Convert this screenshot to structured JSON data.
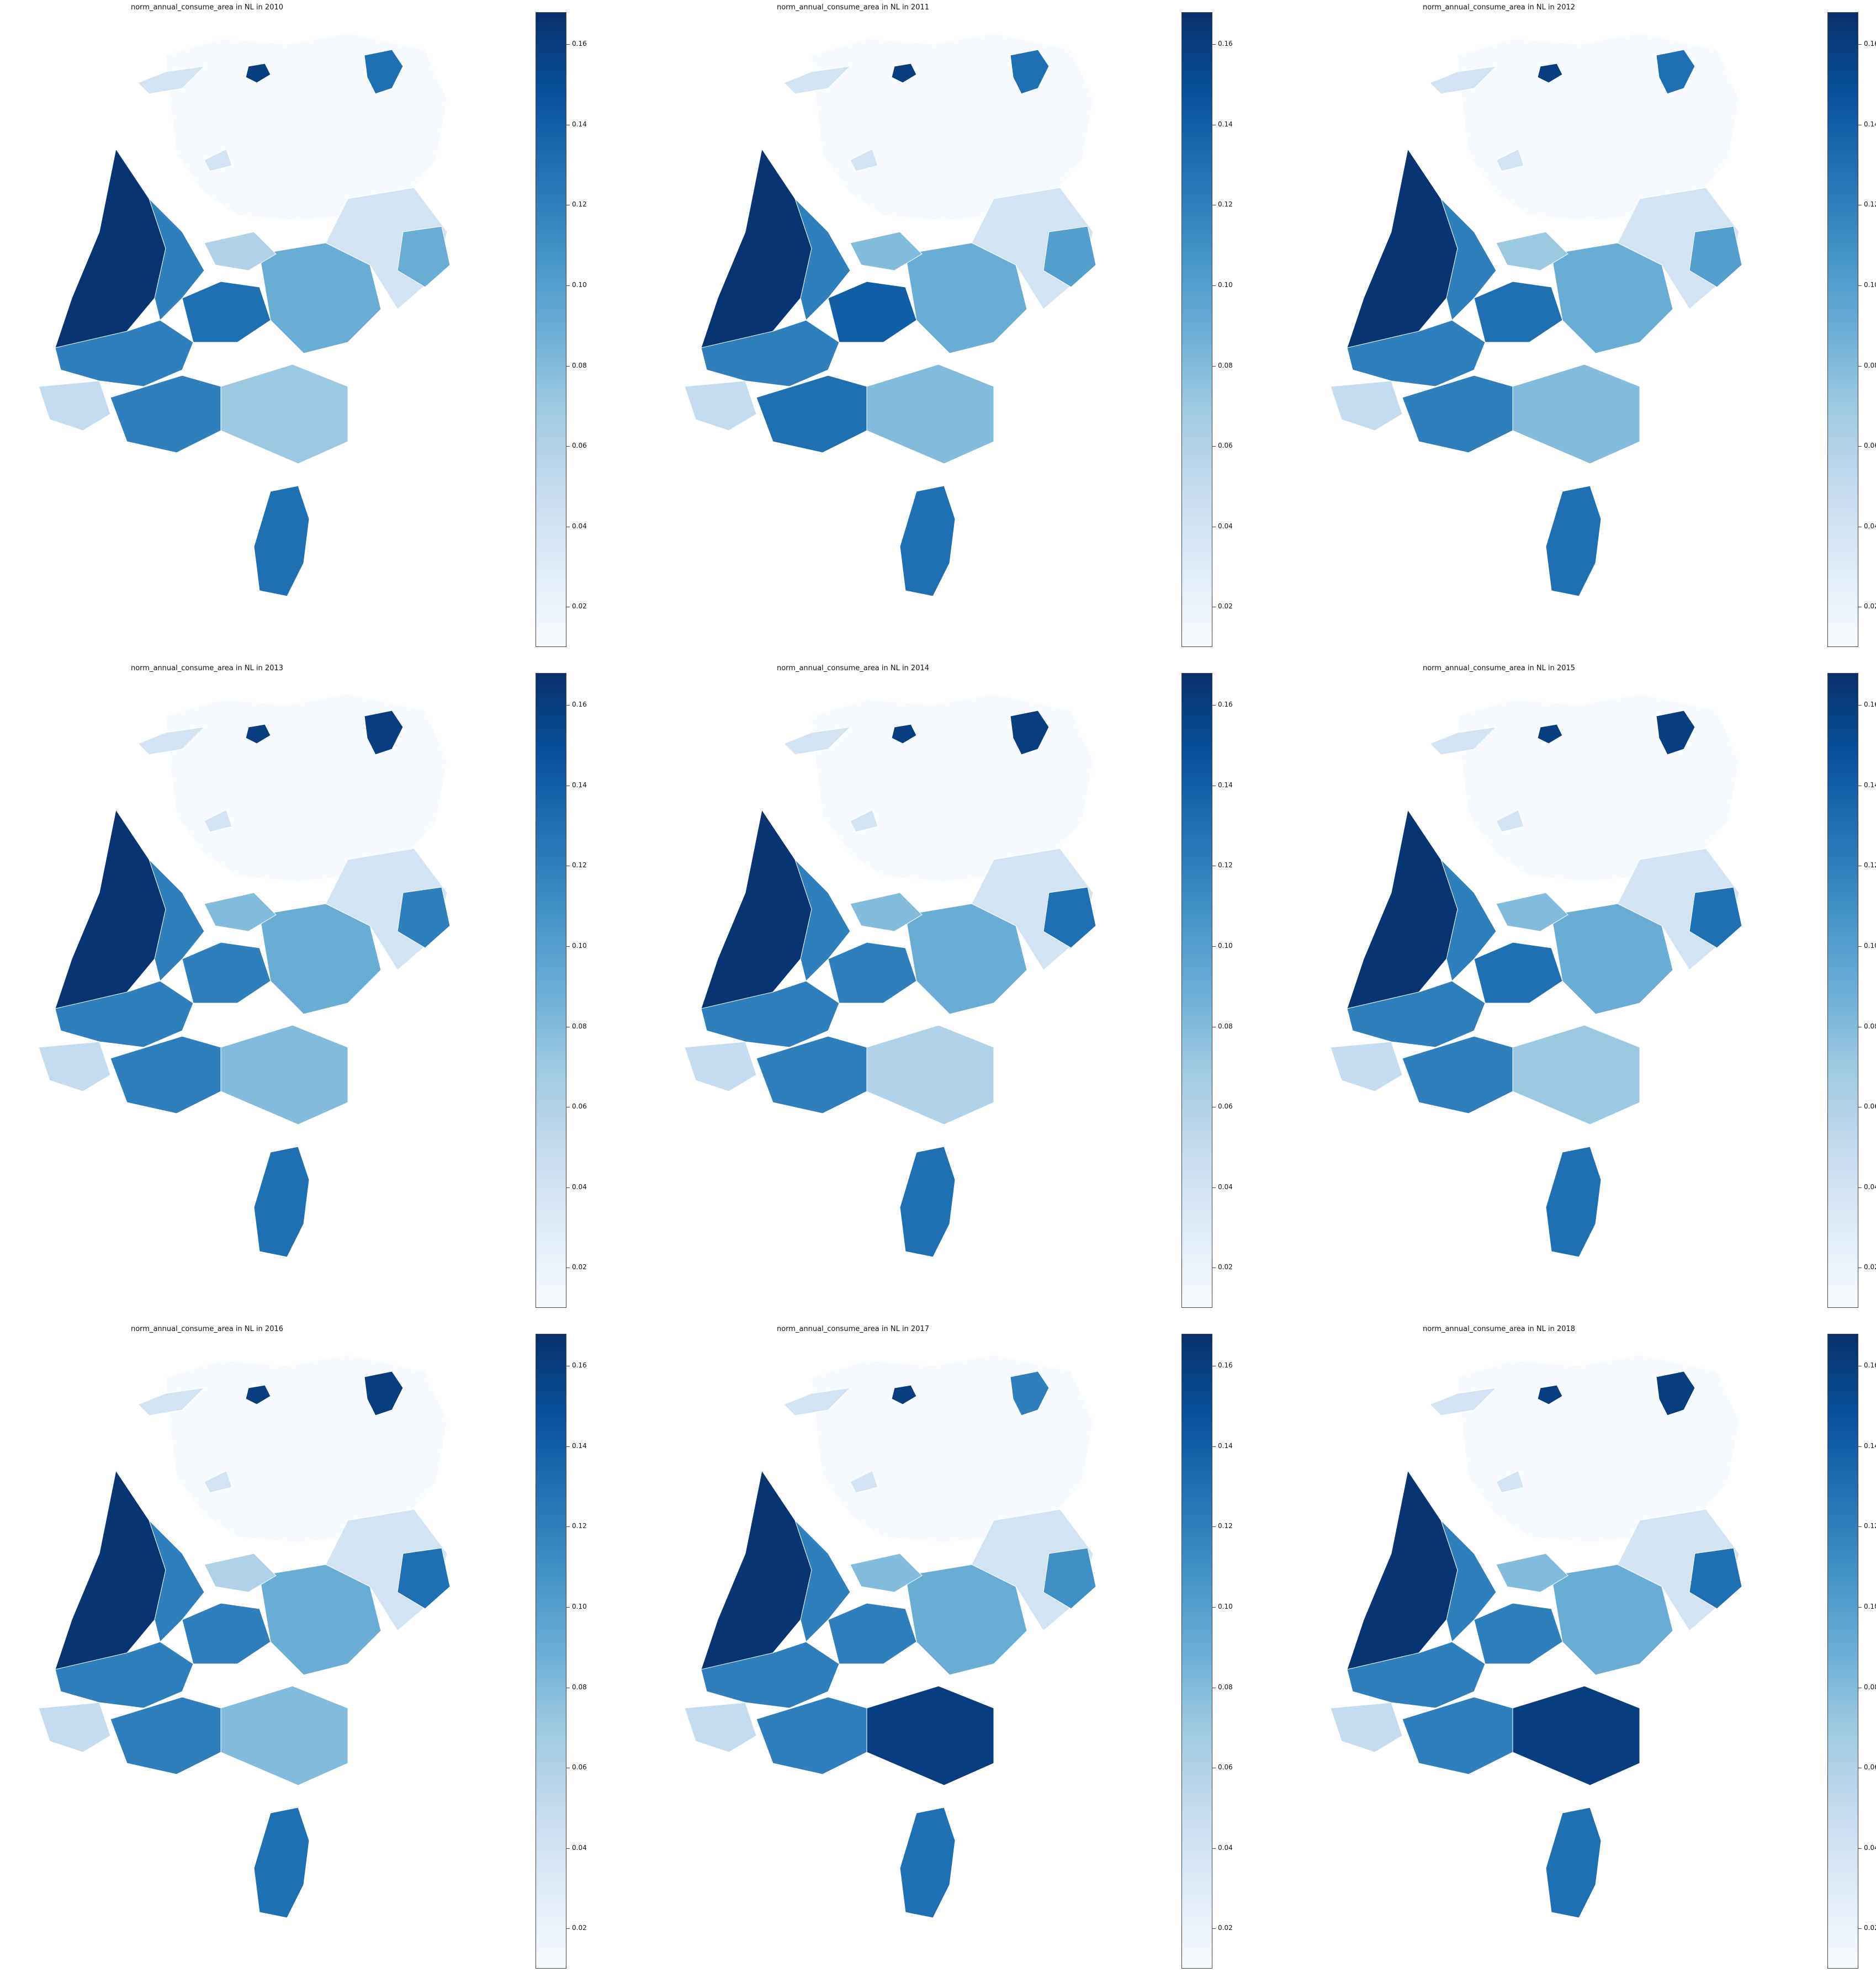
{
  "chart_data": [
    {
      "type": "heatmap",
      "title": "norm_annual_consume_area in NL in 2010",
      "colormap": "Blues",
      "colorbar": {
        "ticks": [
          "0.02",
          "0.04",
          "0.06",
          "0.08",
          "0.10",
          "0.12",
          "0.14",
          "0.16"
        ],
        "range": [
          0.01,
          0.168
        ]
      },
      "regions": {
        "west_coast": 0.165,
        "north_holland_inner": 0.12,
        "flevoland_ring": 0.06,
        "utrecht": 0.13,
        "gelderland_centre": 0.09,
        "east": 0.04,
        "twente": 0.09,
        "south_holland": 0.12,
        "zeeland": 0.05,
        "brabant_west": 0.12,
        "brabant_east": 0.07,
        "limburg": 0.13,
        "north": 0.01,
        "frisian_isles": 0.04,
        "groningen_city": 0.16,
        "groningen_east": 0.13
      }
    },
    {
      "type": "heatmap",
      "title": "norm_annual_consume_area in NL in 2011",
      "colormap": "Blues",
      "colorbar": {
        "ticks": [
          "0.02",
          "0.04",
          "0.06",
          "0.08",
          "0.10",
          "0.12",
          "0.14",
          "0.16"
        ],
        "range": [
          0.01,
          0.168
        ]
      },
      "regions": {
        "west_coast": 0.165,
        "north_holland_inner": 0.12,
        "flevoland_ring": 0.08,
        "utrecht": 0.14,
        "gelderland_centre": 0.09,
        "east": 0.04,
        "twente": 0.1,
        "south_holland": 0.12,
        "zeeland": 0.05,
        "brabant_west": 0.13,
        "brabant_east": 0.08,
        "limburg": 0.13,
        "north": 0.01,
        "frisian_isles": 0.04,
        "groningen_city": 0.16,
        "groningen_east": 0.13
      }
    },
    {
      "type": "heatmap",
      "title": "norm_annual_consume_area in NL in 2012",
      "colormap": "Blues",
      "colorbar": {
        "ticks": [
          "0.02",
          "0.04",
          "0.06",
          "0.08",
          "0.10",
          "0.12",
          "0.14",
          "0.16"
        ],
        "range": [
          0.01,
          0.168
        ]
      },
      "regions": {
        "west_coast": 0.165,
        "north_holland_inner": 0.12,
        "flevoland_ring": 0.07,
        "utrecht": 0.13,
        "gelderland_centre": 0.09,
        "east": 0.04,
        "twente": 0.1,
        "south_holland": 0.12,
        "zeeland": 0.05,
        "brabant_west": 0.12,
        "brabant_east": 0.08,
        "limburg": 0.13,
        "north": 0.01,
        "frisian_isles": 0.04,
        "groningen_city": 0.16,
        "groningen_east": 0.13
      }
    },
    {
      "type": "heatmap",
      "title": "norm_annual_consume_area in NL in 2013",
      "colormap": "Blues",
      "colorbar": {
        "ticks": [
          "0.02",
          "0.04",
          "0.06",
          "0.08",
          "0.10",
          "0.12",
          "0.14",
          "0.16"
        ],
        "range": [
          0.01,
          0.168
        ]
      },
      "regions": {
        "west_coast": 0.165,
        "north_holland_inner": 0.12,
        "flevoland_ring": 0.08,
        "utrecht": 0.12,
        "gelderland_centre": 0.09,
        "east": 0.04,
        "twente": 0.12,
        "south_holland": 0.12,
        "zeeland": 0.05,
        "brabant_west": 0.12,
        "brabant_east": 0.08,
        "limburg": 0.13,
        "north": 0.01,
        "frisian_isles": 0.04,
        "groningen_city": 0.16,
        "groningen_east": 0.16
      }
    },
    {
      "type": "heatmap",
      "title": "norm_annual_consume_area in NL in 2014",
      "colormap": "Blues",
      "colorbar": {
        "ticks": [
          "0.02",
          "0.04",
          "0.06",
          "0.08",
          "0.10",
          "0.12",
          "0.14",
          "0.16"
        ],
        "range": [
          0.01,
          0.168
        ]
      },
      "regions": {
        "west_coast": 0.165,
        "north_holland_inner": 0.12,
        "flevoland_ring": 0.08,
        "utrecht": 0.12,
        "gelderland_centre": 0.09,
        "east": 0.04,
        "twente": 0.13,
        "south_holland": 0.12,
        "zeeland": 0.05,
        "brabant_west": 0.12,
        "brabant_east": 0.06,
        "limburg": 0.13,
        "north": 0.01,
        "frisian_isles": 0.04,
        "groningen_city": 0.16,
        "groningen_east": 0.16
      }
    },
    {
      "type": "heatmap",
      "title": "norm_annual_consume_area in NL in 2015",
      "colormap": "Blues",
      "colorbar": {
        "ticks": [
          "0.02",
          "0.04",
          "0.06",
          "0.08",
          "0.10",
          "0.12",
          "0.14",
          "0.16"
        ],
        "range": [
          0.01,
          0.168
        ]
      },
      "regions": {
        "west_coast": 0.165,
        "north_holland_inner": 0.12,
        "flevoland_ring": 0.08,
        "utrecht": 0.13,
        "gelderland_centre": 0.09,
        "east": 0.04,
        "twente": 0.13,
        "south_holland": 0.12,
        "zeeland": 0.05,
        "brabant_west": 0.12,
        "brabant_east": 0.07,
        "limburg": 0.13,
        "north": 0.01,
        "frisian_isles": 0.04,
        "groningen_city": 0.16,
        "groningen_east": 0.16
      }
    },
    {
      "type": "heatmap",
      "title": "norm_annual_consume_area in NL in 2016",
      "colormap": "Blues",
      "colorbar": {
        "ticks": [
          "0.02",
          "0.04",
          "0.06",
          "0.08",
          "0.10",
          "0.12",
          "0.14",
          "0.16"
        ],
        "range": [
          0.01,
          0.168
        ]
      },
      "regions": {
        "west_coast": 0.165,
        "north_holland_inner": 0.12,
        "flevoland_ring": 0.06,
        "utrecht": 0.12,
        "gelderland_centre": 0.09,
        "east": 0.04,
        "twente": 0.13,
        "south_holland": 0.12,
        "zeeland": 0.05,
        "brabant_west": 0.12,
        "brabant_east": 0.08,
        "limburg": 0.13,
        "north": 0.01,
        "frisian_isles": 0.04,
        "groningen_city": 0.16,
        "groningen_east": 0.16
      }
    },
    {
      "type": "heatmap",
      "title": "norm_annual_consume_area in NL in 2017",
      "colormap": "Blues",
      "colorbar": {
        "ticks": [
          "0.02",
          "0.04",
          "0.06",
          "0.08",
          "0.10",
          "0.12",
          "0.14",
          "0.16"
        ],
        "range": [
          0.01,
          0.168
        ]
      },
      "regions": {
        "west_coast": 0.165,
        "north_holland_inner": 0.12,
        "flevoland_ring": 0.08,
        "utrecht": 0.12,
        "gelderland_centre": 0.09,
        "east": 0.04,
        "twente": 0.11,
        "south_holland": 0.12,
        "zeeland": 0.05,
        "brabant_west": 0.12,
        "brabant_east": 0.16,
        "limburg": 0.13,
        "north": 0.01,
        "frisian_isles": 0.04,
        "groningen_city": 0.16,
        "groningen_east": 0.12
      }
    },
    {
      "type": "heatmap",
      "title": "norm_annual_consume_area in NL in 2018",
      "colormap": "Blues",
      "colorbar": {
        "ticks": [
          "0.02",
          "0.04",
          "0.06",
          "0.08",
          "0.10",
          "0.12",
          "0.14",
          "0.16"
        ],
        "range": [
          0.01,
          0.168
        ]
      },
      "regions": {
        "west_coast": 0.165,
        "north_holland_inner": 0.12,
        "flevoland_ring": 0.08,
        "utrecht": 0.12,
        "gelderland_centre": 0.09,
        "east": 0.04,
        "twente": 0.13,
        "south_holland": 0.12,
        "zeeland": 0.05,
        "brabant_west": 0.12,
        "brabant_east": 0.16,
        "limburg": 0.13,
        "north": 0.01,
        "frisian_isles": 0.04,
        "groningen_city": 0.16,
        "groningen_east": 0.16
      }
    }
  ]
}
